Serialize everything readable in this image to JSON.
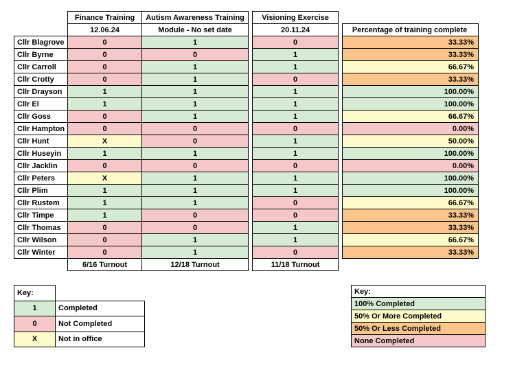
{
  "colors": {
    "green": "#d5ebd4",
    "red": "#f4c7c8",
    "yellow": "#fdfac9",
    "orange": "#f9c58b"
  },
  "headers": {
    "finance": "Finance Training",
    "finance_date": "12.06.24",
    "autism": "Autism Awareness Training",
    "autism_date": "Module - No set date",
    "vision": "Visioning Exercise",
    "vision_date": "20.11.24",
    "pct": "Percentage of training complete"
  },
  "rows": [
    {
      "name": "Cllr Blagrove",
      "finance": {
        "v": "0",
        "c": "red"
      },
      "autism": {
        "v": "1",
        "c": "green"
      },
      "vision": {
        "v": "0",
        "c": "red"
      },
      "pct": {
        "v": "33.33%",
        "c": "orange"
      }
    },
    {
      "name": "Cllr Byrne",
      "finance": {
        "v": "0",
        "c": "red"
      },
      "autism": {
        "v": "0",
        "c": "red"
      },
      "vision": {
        "v": "1",
        "c": "green"
      },
      "pct": {
        "v": "33.33%",
        "c": "orange"
      }
    },
    {
      "name": "Cllr Carroll",
      "finance": {
        "v": "0",
        "c": "red"
      },
      "autism": {
        "v": "1",
        "c": "green"
      },
      "vision": {
        "v": "1",
        "c": "green"
      },
      "pct": {
        "v": "66.67%",
        "c": "yellow"
      }
    },
    {
      "name": "Cllr Crotty",
      "finance": {
        "v": "0",
        "c": "red"
      },
      "autism": {
        "v": "1",
        "c": "green"
      },
      "vision": {
        "v": "0",
        "c": "red"
      },
      "pct": {
        "v": "33.33%",
        "c": "orange"
      }
    },
    {
      "name": "Cllr Drayson",
      "finance": {
        "v": "1",
        "c": "green"
      },
      "autism": {
        "v": "1",
        "c": "green"
      },
      "vision": {
        "v": "1",
        "c": "green"
      },
      "pct": {
        "v": "100.00%",
        "c": "green"
      }
    },
    {
      "name": "Cllr El",
      "finance": {
        "v": "1",
        "c": "green"
      },
      "autism": {
        "v": "1",
        "c": "green"
      },
      "vision": {
        "v": "1",
        "c": "green"
      },
      "pct": {
        "v": "100.00%",
        "c": "green"
      }
    },
    {
      "name": "Cllr Goss",
      "finance": {
        "v": "0",
        "c": "red"
      },
      "autism": {
        "v": "1",
        "c": "green"
      },
      "vision": {
        "v": "1",
        "c": "green"
      },
      "pct": {
        "v": "66.67%",
        "c": "yellow"
      }
    },
    {
      "name": "Cllr Hampton",
      "finance": {
        "v": "0",
        "c": "red"
      },
      "autism": {
        "v": "0",
        "c": "red"
      },
      "vision": {
        "v": "0",
        "c": "red"
      },
      "pct": {
        "v": "0.00%",
        "c": "red"
      }
    },
    {
      "name": "Cllr Hunt",
      "finance": {
        "v": "X",
        "c": "yellow"
      },
      "autism": {
        "v": "0",
        "c": "red"
      },
      "vision": {
        "v": "1",
        "c": "green"
      },
      "pct": {
        "v": "50.00%",
        "c": "yellow"
      }
    },
    {
      "name": "Cllr Huseyin",
      "finance": {
        "v": "1",
        "c": "green"
      },
      "autism": {
        "v": "1",
        "c": "green"
      },
      "vision": {
        "v": "1",
        "c": "green"
      },
      "pct": {
        "v": "100.00%",
        "c": "green"
      }
    },
    {
      "name": "Cllr Jacklin",
      "finance": {
        "v": "0",
        "c": "red"
      },
      "autism": {
        "v": "0",
        "c": "red"
      },
      "vision": {
        "v": "0",
        "c": "red"
      },
      "pct": {
        "v": "0.00%",
        "c": "red"
      }
    },
    {
      "name": "Cllr Peters",
      "finance": {
        "v": "X",
        "c": "yellow"
      },
      "autism": {
        "v": "1",
        "c": "green"
      },
      "vision": {
        "v": "1",
        "c": "green"
      },
      "pct": {
        "v": "100.00%",
        "c": "green"
      }
    },
    {
      "name": "Cllr Plim",
      "finance": {
        "v": "1",
        "c": "green"
      },
      "autism": {
        "v": "1",
        "c": "green"
      },
      "vision": {
        "v": "1",
        "c": "green"
      },
      "pct": {
        "v": "100.00%",
        "c": "green"
      }
    },
    {
      "name": "Cllr Rustem",
      "finance": {
        "v": "1",
        "c": "green"
      },
      "autism": {
        "v": "1",
        "c": "green"
      },
      "vision": {
        "v": "0",
        "c": "red"
      },
      "pct": {
        "v": "66.67%",
        "c": "yellow"
      }
    },
    {
      "name": "Cllr Timpe",
      "finance": {
        "v": "1",
        "c": "green"
      },
      "autism": {
        "v": "0",
        "c": "red"
      },
      "vision": {
        "v": "0",
        "c": "red"
      },
      "pct": {
        "v": "33.33%",
        "c": "orange"
      }
    },
    {
      "name": "Cllr Thomas",
      "finance": {
        "v": "0",
        "c": "red"
      },
      "autism": {
        "v": "0",
        "c": "red"
      },
      "vision": {
        "v": "1",
        "c": "green"
      },
      "pct": {
        "v": "33.33%",
        "c": "orange"
      }
    },
    {
      "name": "Cllr Wilson",
      "finance": {
        "v": "0",
        "c": "red"
      },
      "autism": {
        "v": "1",
        "c": "green"
      },
      "vision": {
        "v": "1",
        "c": "green"
      },
      "pct": {
        "v": "66.67%",
        "c": "yellow"
      }
    },
    {
      "name": "Cllr Winter",
      "finance": {
        "v": "0",
        "c": "red"
      },
      "autism": {
        "v": "1",
        "c": "green"
      },
      "vision": {
        "v": "0",
        "c": "red"
      },
      "pct": {
        "v": "33.33%",
        "c": "orange"
      }
    }
  ],
  "footer": {
    "finance": "6/16 Turnout",
    "autism": "12/18 Turnout",
    "vision": "11/18 Turnout"
  },
  "legend_left": {
    "title": "Key:",
    "items": [
      {
        "sym": "1",
        "c": "green",
        "lbl": "Completed"
      },
      {
        "sym": "0",
        "c": "red",
        "lbl": "Not Completed"
      },
      {
        "sym": "X",
        "c": "yellow",
        "lbl": "Not in office"
      }
    ]
  },
  "legend_right": {
    "title": "Key:",
    "items": [
      {
        "c": "green",
        "lbl": "100% Completed"
      },
      {
        "c": "yellow",
        "lbl": "50% Or More Completed"
      },
      {
        "c": "orange",
        "lbl": "50% Or Less Completed"
      },
      {
        "c": "red",
        "lbl": "None Completed"
      }
    ]
  }
}
